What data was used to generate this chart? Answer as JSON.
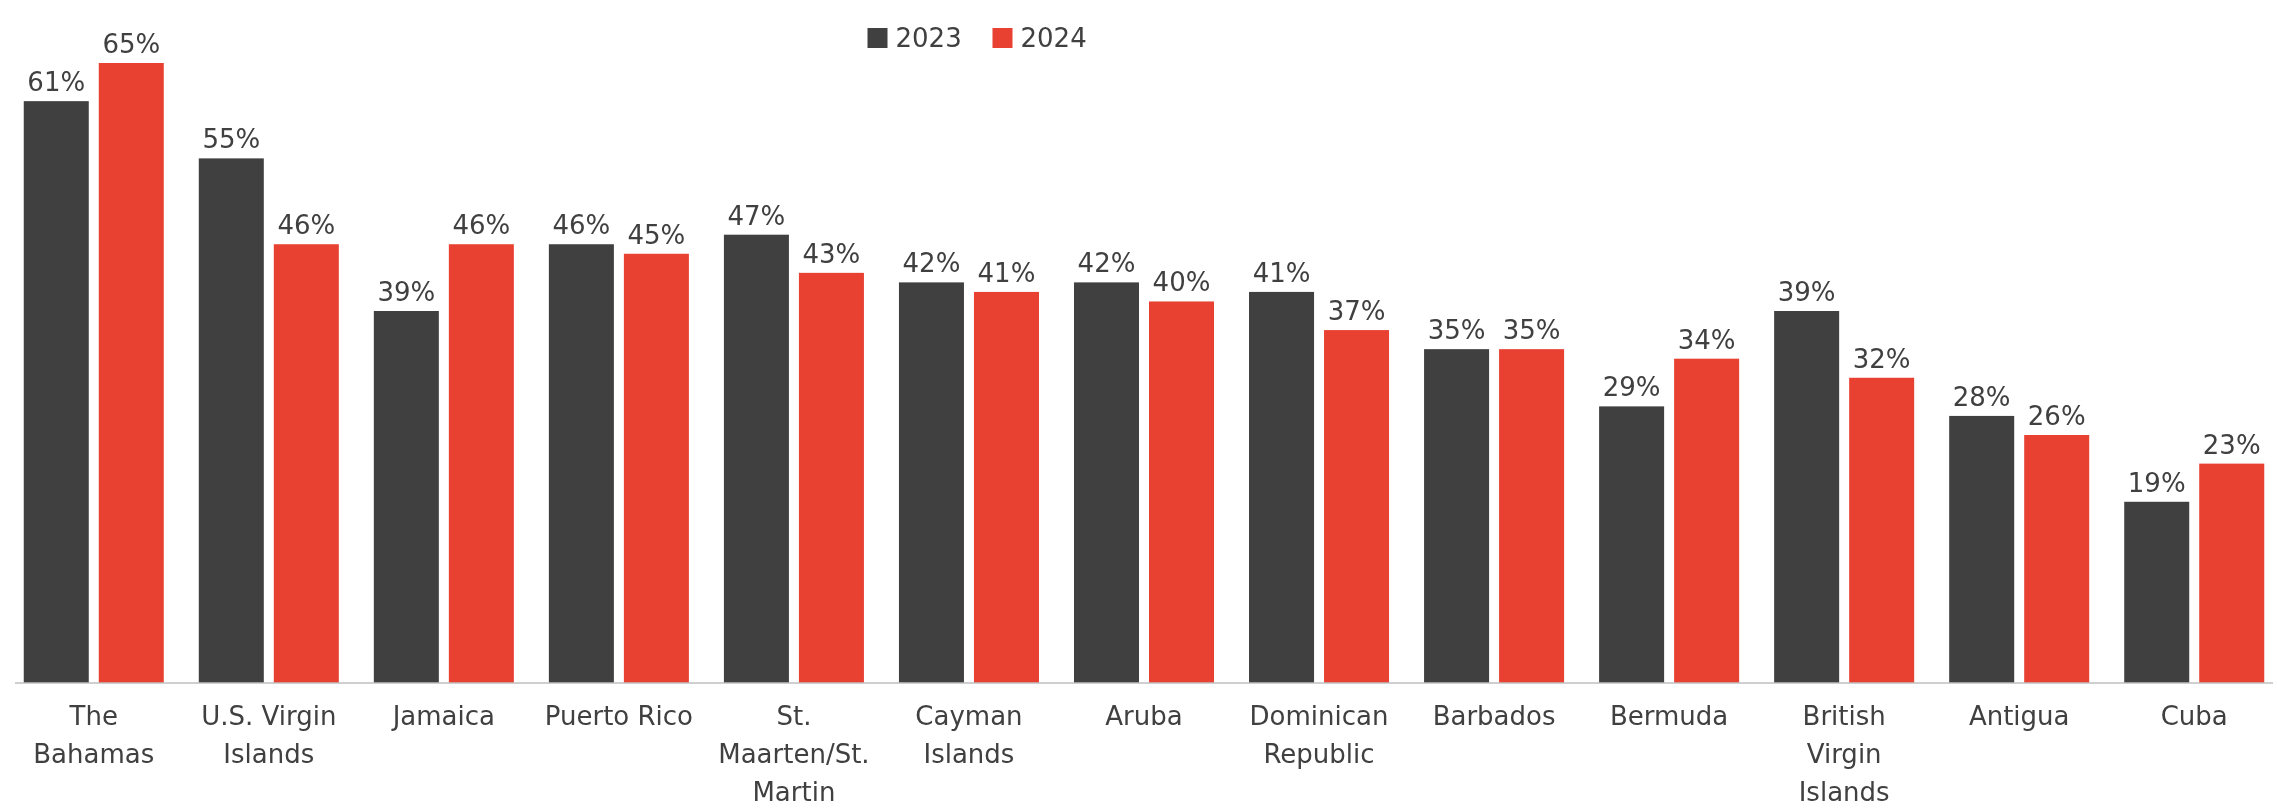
{
  "chart_data": {
    "type": "bar",
    "categories": [
      "The Bahamas",
      "U.S. Virgin Islands",
      "Jamaica",
      "Puerto Rico",
      "St. Maarten/St. Martin",
      "Cayman Islands",
      "Aruba",
      "Dominican Republic",
      "Barbados",
      "Bermuda",
      "British Virgin Islands",
      "Antigua",
      "Cuba"
    ],
    "series": [
      {
        "name": "2023",
        "color": "#404040",
        "values": [
          61,
          55,
          39,
          46,
          47,
          42,
          42,
          41,
          35,
          29,
          39,
          28,
          19
        ],
        "value_labels": [
          "61%",
          "55%",
          "39%",
          "46%",
          "47%",
          "42%",
          "42%",
          "41%",
          "35%",
          "29%",
          "39%",
          "28%",
          "19%"
        ]
      },
      {
        "name": "2024",
        "color": "#e84132",
        "values": [
          65,
          46,
          46,
          45,
          43,
          41,
          40,
          37,
          35,
          34,
          32,
          26,
          23
        ],
        "value_labels": [
          "65%",
          "46%",
          "46%",
          "45%",
          "43%",
          "41%",
          "40%",
          "37%",
          "35%",
          "34%",
          "32%",
          "26%",
          "23%"
        ]
      }
    ],
    "legend": "top"
  }
}
